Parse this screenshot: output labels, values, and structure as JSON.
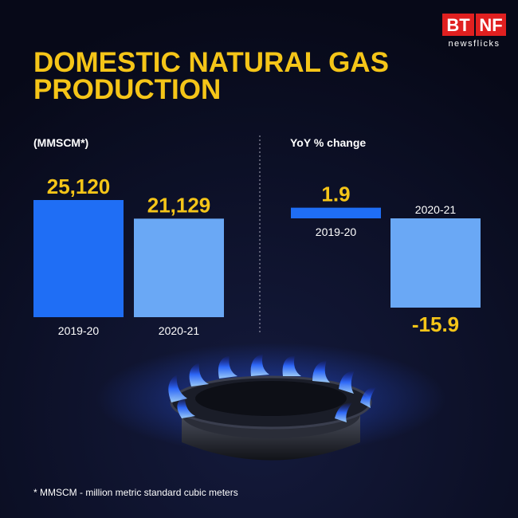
{
  "title_lines": [
    "DOMESTIC NATURAL GAS",
    "PRODUCTION"
  ],
  "logo": [
    "BT",
    "NF"
  ],
  "logo_tagline": "newsflicks",
  "footnote": "* MMSCM - million metric standard cubic meters",
  "chart_data": [
    {
      "type": "bar",
      "y_label": "(MMSCM*)",
      "categories": [
        "2019-20",
        "2020-21"
      ],
      "values": [
        25120,
        21129
      ],
      "value_labels": [
        "25,120",
        "21,129"
      ],
      "colors": [
        "#1f6ef5",
        "#6aa8f5"
      ],
      "label_color": "#f5c518"
    },
    {
      "type": "bar",
      "y_label": "YoY % change",
      "categories": [
        "2019-20",
        "2020-21"
      ],
      "values": [
        1.9,
        -15.9
      ],
      "colors": [
        "#1f6ef5",
        "#6aa8f5"
      ],
      "label_color": "#f5c518"
    }
  ]
}
